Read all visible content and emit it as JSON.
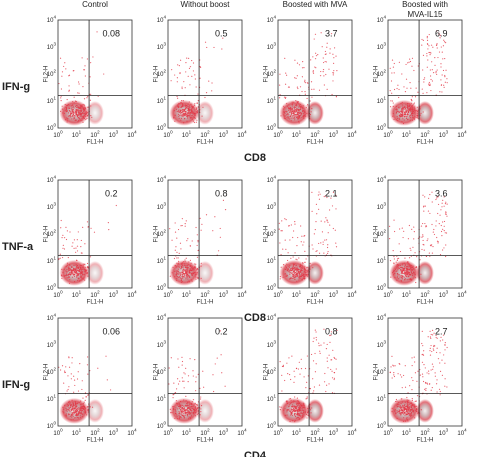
{
  "columns": [
    [
      "Control"
    ],
    [
      "Without boost"
    ],
    [
      "Boosted with MVA"
    ],
    [
      "Boosted with",
      "MVA-IL15"
    ]
  ],
  "rows": [
    {
      "label": "IFN-g",
      "marker": "CD8",
      "quadrant_values": [
        0.08,
        0.5,
        3.7,
        6.9
      ]
    },
    {
      "label": "TNF-a",
      "marker": "CD8",
      "quadrant_values": [
        0.2,
        0.8,
        2.1,
        3.6
      ]
    },
    {
      "label": "IFN-g",
      "marker": "CD4",
      "quadrant_values": [
        0.06,
        0.2,
        0.8,
        2.7
      ]
    }
  ],
  "x_axis_label": "FL1-H",
  "y_axis_label": "FL2-H",
  "tick_base": "10",
  "tick_exponents": [
    0,
    1,
    2,
    3,
    4
  ]
}
